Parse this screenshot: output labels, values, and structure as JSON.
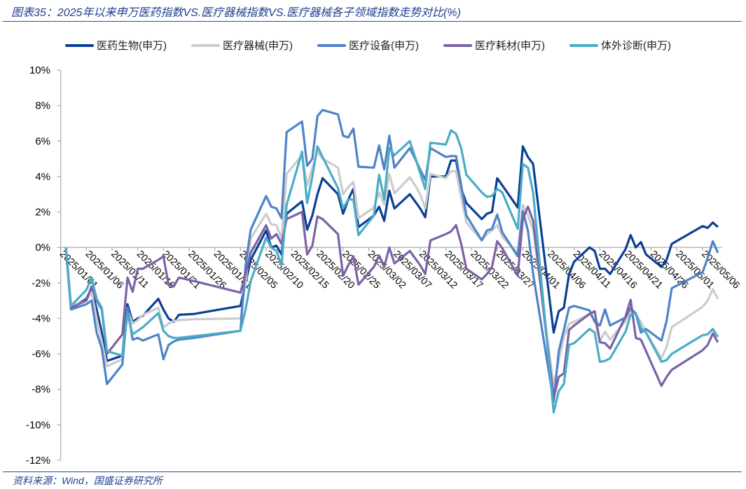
{
  "title": "图表35：2025年以来申万医药指数VS.医疗器械指数VS.医疗器械各子领域指数走势对比(%)",
  "source": "资料来源：Wind，国盛证券研究所",
  "chart_data": {
    "type": "line",
    "title": "图表35：2025年以来申万医药指数VS.医疗器械指数VS.医疗器械各子领域指数走势对比(%)",
    "xlabel": "",
    "ylabel": "",
    "ylim": [
      -12,
      10
    ],
    "yticks": [
      10,
      8,
      6,
      4,
      2,
      0,
      -2,
      -4,
      -6,
      -8,
      -10,
      -12
    ],
    "ytick_labels": [
      "10%",
      "8%",
      "6%",
      "4%",
      "2%",
      "0%",
      "-2%",
      "-4%",
      "-6%",
      "-8%",
      "-10%",
      "-12%"
    ],
    "xlim": [
      "2025/01/01",
      "2025/05/09"
    ],
    "xtick_labels": [
      "2025/01/01",
      "2025/01/06",
      "2025/01/11",
      "2025/01/16",
      "2025/01/21",
      "2025/01/26",
      "2025/01/31",
      "2025/02/05",
      "2025/02/10",
      "2025/02/15",
      "2025/02/20",
      "2025/02/25",
      "2025/03/02",
      "2025/03/07",
      "2025/03/12",
      "2025/03/17",
      "2025/03/22",
      "2025/03/27",
      "2025/04/01",
      "2025/04/06",
      "2025/04/11",
      "2025/04/16",
      "2025/04/21",
      "2025/04/26",
      "2025/05/01",
      "2025/05/06"
    ],
    "grid": false,
    "legend": "top",
    "x": [
      "2025/01/02",
      "2025/01/03",
      "2025/01/06",
      "2025/01/07",
      "2025/01/08",
      "2025/01/09",
      "2025/01/10",
      "2025/01/13",
      "2025/01/14",
      "2025/01/15",
      "2025/01/16",
      "2025/01/17",
      "2025/01/20",
      "2025/01/21",
      "2025/01/22",
      "2025/01/23",
      "2025/01/24",
      "2025/01/27",
      "2025/02/05",
      "2025/02/06",
      "2025/02/07",
      "2025/02/10",
      "2025/02/11",
      "2025/02/12",
      "2025/02/13",
      "2025/02/14",
      "2025/02/17",
      "2025/02/18",
      "2025/02/19",
      "2025/02/20",
      "2025/02/21",
      "2025/02/24",
      "2025/02/25",
      "2025/02/26",
      "2025/02/27",
      "2025/02/28",
      "2025/03/03",
      "2025/03/04",
      "2025/03/05",
      "2025/03/06",
      "2025/03/07",
      "2025/03/10",
      "2025/03/11",
      "2025/03/12",
      "2025/03/13",
      "2025/03/14",
      "2025/03/17",
      "2025/03/18",
      "2025/03/19",
      "2025/03/20",
      "2025/03/21",
      "2025/03/24",
      "2025/03/25",
      "2025/03/26",
      "2025/03/27",
      "2025/03/28",
      "2025/03/31",
      "2025/04/01",
      "2025/04/02",
      "2025/04/03",
      "2025/04/07",
      "2025/04/08",
      "2025/04/09",
      "2025/04/10",
      "2025/04/11",
      "2025/04/14",
      "2025/04/15",
      "2025/04/16",
      "2025/04/17",
      "2025/04/18",
      "2025/04/21",
      "2025/04/22",
      "2025/04/23",
      "2025/04/24",
      "2025/04/25",
      "2025/04/28",
      "2025/04/29",
      "2025/04/30",
      "2025/05/06",
      "2025/05/07",
      "2025/05/08",
      "2025/05/09"
    ],
    "series": [
      {
        "name": "医药生物(申万)",
        "color": "#0a3f95",
        "values": [
          0,
          -3.4,
          -2.9,
          -2.3,
          -3.5,
          -4.8,
          -6.4,
          -6.1,
          -3.2,
          -4.2,
          -4.0,
          -3.85,
          -2.9,
          -3.5,
          -4.0,
          -4.2,
          -3.8,
          -3.75,
          -3.3,
          -2.0,
          -0.7,
          0.95,
          0,
          0.1,
          -0.4,
          1.9,
          2.6,
          1.0,
          1.8,
          3.0,
          3.9,
          3.0,
          1.9,
          2.7,
          3.3,
          1.15,
          1.8,
          2.3,
          1.5,
          3.2,
          2.2,
          3.0,
          2.6,
          2.2,
          1.7,
          4.0,
          4.0,
          4.9,
          4.9,
          3.3,
          2.5,
          1.6,
          1.9,
          2.0,
          3.9,
          3.5,
          2.25,
          5.7,
          5.1,
          4.7,
          -4.8,
          -3.6,
          -3.4,
          -1.5,
          -0.8,
          0,
          -0.2,
          -1.2,
          -1.2,
          -1.5,
          -0.1,
          0.7,
          0,
          0.3,
          -0.4,
          -1.1,
          -0.7,
          0.2,
          1.2,
          1.1,
          1.4,
          1.15
        ]
      },
      {
        "name": "医疗器械(申万)",
        "color": "#cccccc",
        "values": [
          0,
          -3.3,
          -3.0,
          -2.5,
          -4.0,
          -5.3,
          -6.7,
          -6.3,
          -3.5,
          -4.3,
          -4.1,
          -3.8,
          -3.4,
          -4.5,
          -4.3,
          -4.15,
          -4.1,
          -4.05,
          -4.0,
          -2.0,
          0.5,
          1.9,
          1.3,
          1.25,
          0.5,
          4.15,
          5.2,
          3.5,
          4.5,
          5.4,
          5.0,
          4.5,
          3.0,
          3.4,
          3.7,
          1.65,
          2.25,
          3.1,
          2.4,
          4.15,
          3.05,
          3.95,
          3.5,
          3.0,
          2.2,
          4.15,
          3.9,
          4.3,
          4.3,
          2.8,
          1.4,
          0.4,
          0.75,
          0.95,
          1.25,
          0.6,
          -0.3,
          2.4,
          1.8,
          1.0,
          -7.8,
          -6.4,
          -5.05,
          -4.3,
          -4.2,
          -3.75,
          -4.1,
          -5.3,
          -4.75,
          -5.2,
          -4.15,
          -3.5,
          -3.8,
          -4.2,
          -4.8,
          -6.25,
          -5.6,
          -4.5,
          -3.35,
          -3.0,
          -2.35,
          -2.9
        ]
      },
      {
        "name": "医疗设备(申万)",
        "color": "#4f83c8",
        "values": [
          0,
          -3.5,
          -3.2,
          -3.0,
          -4.8,
          -5.7,
          -7.7,
          -6.6,
          -3.4,
          -5.2,
          -5.1,
          -5.25,
          -4.9,
          -6.3,
          -5.5,
          -5.3,
          -5.2,
          -5.1,
          -4.7,
          -1.0,
          1.0,
          2.9,
          2.3,
          2.2,
          1.65,
          6.5,
          7.1,
          4.6,
          5.0,
          7.4,
          7.75,
          7.5,
          6.3,
          6.2,
          6.7,
          4.55,
          4.5,
          5.75,
          4.4,
          6.3,
          4.5,
          5.6,
          5.0,
          4.4,
          3.8,
          5.6,
          5.1,
          5.15,
          5.15,
          3.5,
          1.8,
          0.4,
          0.95,
          1.05,
          1.85,
          0.85,
          -0.5,
          2.05,
          0.95,
          -1.5,
          -8.7,
          -5.85,
          -4.65,
          -3.4,
          -3.3,
          -3.55,
          -4.2,
          -4.4,
          -3.5,
          -4.4,
          -3.95,
          -3.4,
          -3.75,
          -4.8,
          -4.6,
          -5.25,
          -4.15,
          -2.3,
          -1.4,
          -0.6,
          0.35,
          -0.3
        ]
      },
      {
        "name": "医疗耗材(申万)",
        "color": "#7d62a6",
        "values": [
          0,
          -3.4,
          -3.0,
          -2.2,
          -3.0,
          -3.5,
          -6.0,
          -4.9,
          -1.7,
          -2.5,
          -1.2,
          -1.2,
          -0.7,
          -0.5,
          -2.1,
          -2.2,
          -1.7,
          -1.9,
          -2.55,
          -1.5,
          -0.3,
          1.25,
          0.5,
          0.75,
          0.2,
          1.6,
          2.0,
          -0.4,
          0.1,
          1.75,
          1.6,
          0.75,
          -1.6,
          -1.0,
          -0.5,
          -2.1,
          -1.1,
          -0.45,
          -1.1,
          0,
          -0.9,
          -0.2,
          -0.6,
          -1.0,
          -1.5,
          0.4,
          0.75,
          0.9,
          1.25,
          0.2,
          -1.2,
          -1.8,
          -1.5,
          -1.1,
          0.35,
          -0.05,
          -1.6,
          1.6,
          2.3,
          1.5,
          -8.5,
          -7.3,
          -7.1,
          -4.65,
          -4.4,
          -3.75,
          -3.6,
          -5.35,
          -5.4,
          -5.7,
          -3.9,
          -2.95,
          -5.1,
          -5.2,
          -5.85,
          -7.8,
          -7.3,
          -6.9,
          -5.8,
          -5.5,
          -4.85,
          -5.35
        ]
      },
      {
        "name": "体外诊断(申万)",
        "color": "#4aacc6",
        "values": [
          0,
          -3.3,
          -2.4,
          -1.7,
          -2.9,
          -3.4,
          -5.85,
          -6.1,
          -3.75,
          -4.9,
          -4.7,
          -4.5,
          -3.7,
          -4.7,
          -5.0,
          -5.1,
          -5.1,
          -5.0,
          -4.7,
          -3.5,
          -1.9,
          0.55,
          0,
          -0.2,
          -1.0,
          2.4,
          5.4,
          2.5,
          4.0,
          5.7,
          5.1,
          3.35,
          2.2,
          2.7,
          2.7,
          0.7,
          1.8,
          4.1,
          2.7,
          5.6,
          5.2,
          6.0,
          5.1,
          4.2,
          3.3,
          5.9,
          5.8,
          6.6,
          6.4,
          5.6,
          4.1,
          3.1,
          2.85,
          2.9,
          3.3,
          3.1,
          1.05,
          4.7,
          4.5,
          3.1,
          -9.3,
          -8.1,
          -7.7,
          -5.5,
          -5.4,
          -4.6,
          -4.8,
          -6.45,
          -6.4,
          -6.25,
          -4.75,
          -3.8,
          -3.7,
          -4.55,
          -4.8,
          -6.45,
          -6.35,
          -6.0,
          -4.95,
          -4.9,
          -4.6,
          -5.05
        ]
      }
    ]
  }
}
